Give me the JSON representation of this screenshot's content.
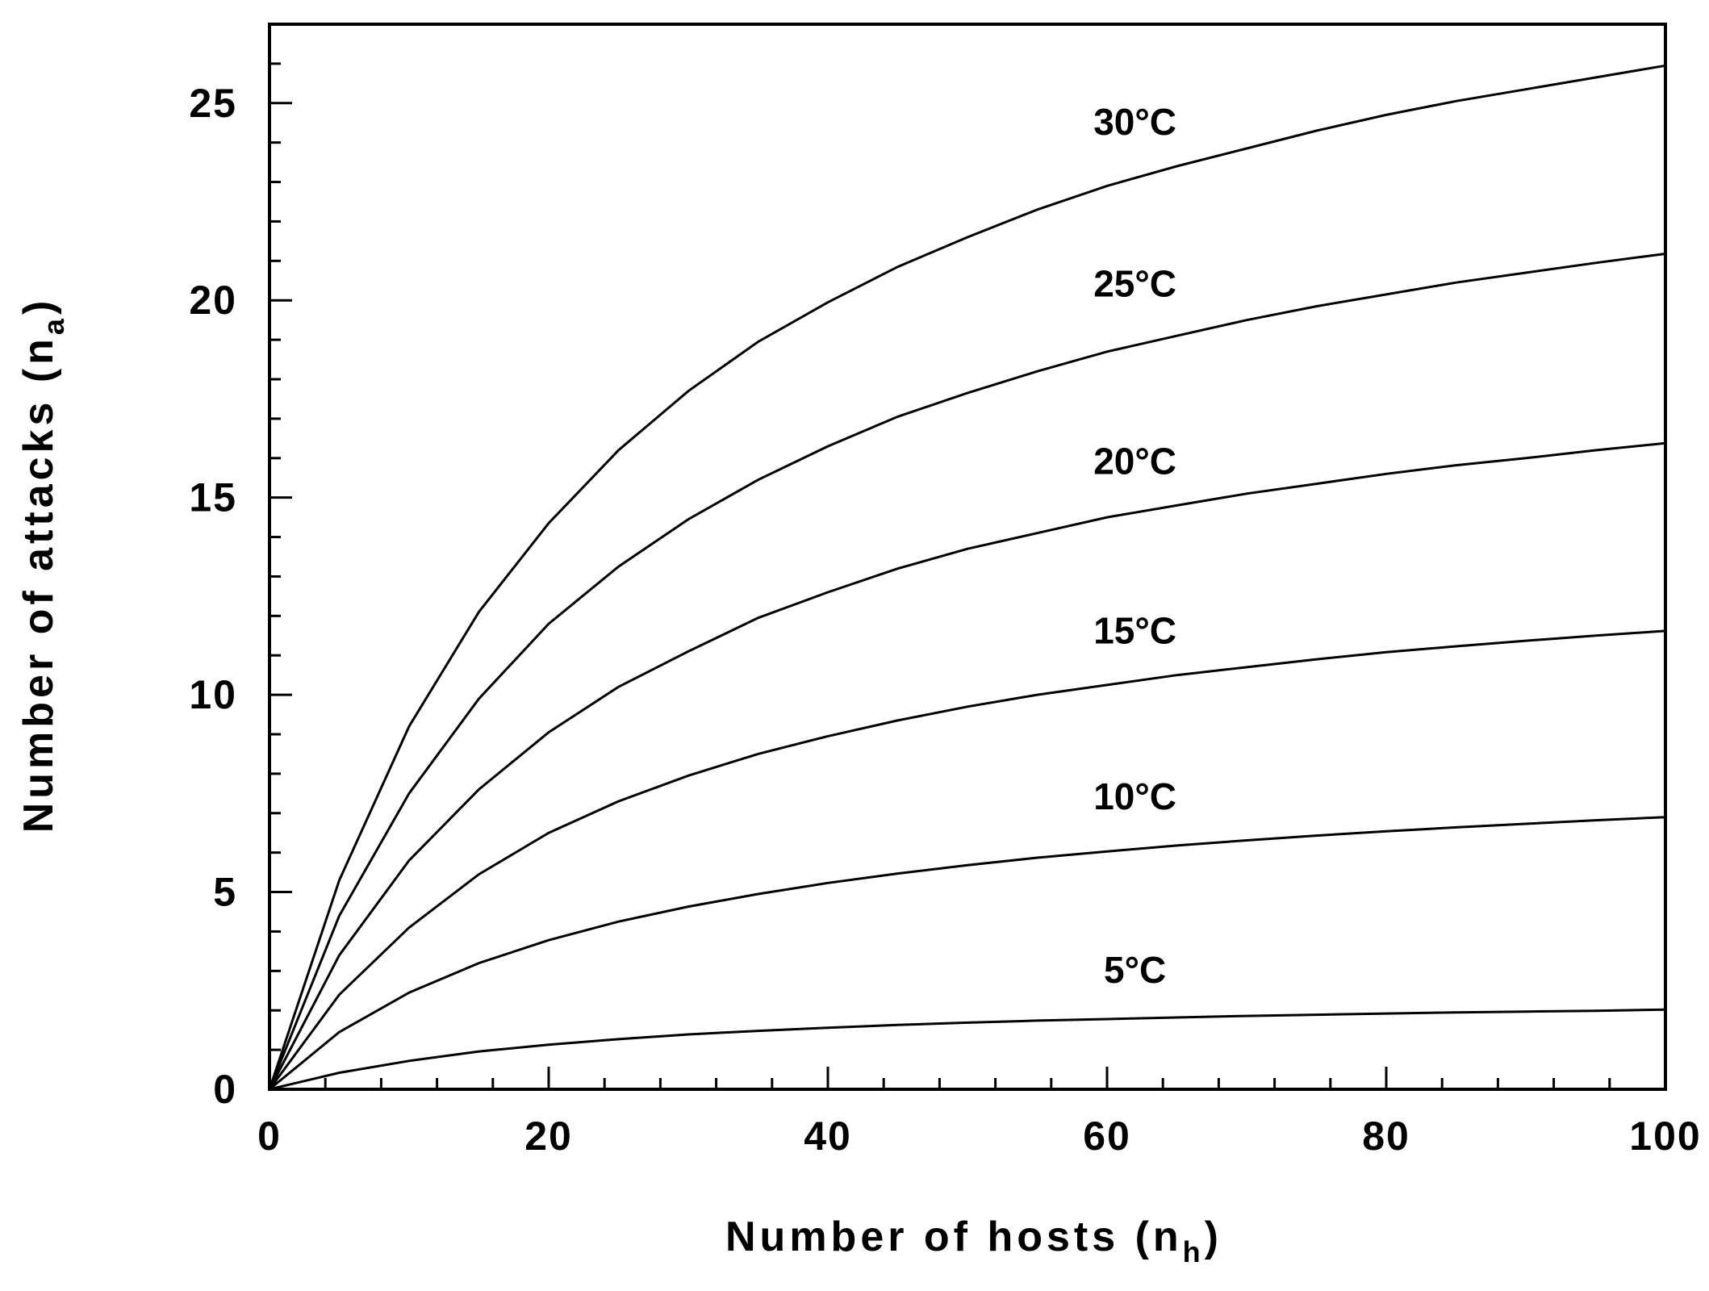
{
  "chart_data": {
    "type": "line",
    "xlabel": "Number of hosts (n",
    "xlabel_sub": "h",
    "xlabel_close": ")",
    "ylabel": "Number of attacks (n",
    "ylabel_sub": "a",
    "ylabel_close": ")",
    "xlim": [
      0,
      100
    ],
    "ylim": [
      0,
      27
    ],
    "x_ticks": [
      0,
      20,
      40,
      60,
      80,
      100
    ],
    "y_ticks": [
      0,
      5,
      10,
      15,
      20,
      25
    ],
    "grid": false,
    "legend": "none",
    "x": [
      0,
      5,
      10,
      15,
      20,
      25,
      30,
      35,
      40,
      45,
      50,
      55,
      60,
      65,
      70,
      75,
      80,
      85,
      90,
      95,
      100
    ],
    "series": [
      {
        "name": "5°C",
        "label_x": 62,
        "label_y": 2.7,
        "values": [
          0,
          0.42,
          0.72,
          0.96,
          1.13,
          1.27,
          1.39,
          1.48,
          1.56,
          1.63,
          1.69,
          1.74,
          1.78,
          1.82,
          1.86,
          1.89,
          1.92,
          1.95,
          1.97,
          1.99,
          2.02
        ]
      },
      {
        "name": "10°C",
        "label_x": 62,
        "label_y": 7.1,
        "values": [
          0,
          1.45,
          2.45,
          3.2,
          3.78,
          4.25,
          4.63,
          4.95,
          5.23,
          5.47,
          5.68,
          5.87,
          6.03,
          6.18,
          6.31,
          6.43,
          6.54,
          6.64,
          6.73,
          6.82,
          6.9
        ]
      },
      {
        "name": "15°C",
        "label_x": 62,
        "label_y": 11.3,
        "values": [
          0,
          2.4,
          4.1,
          5.45,
          6.5,
          7.3,
          7.95,
          8.5,
          8.95,
          9.35,
          9.7,
          10.0,
          10.25,
          10.5,
          10.7,
          10.9,
          11.08,
          11.23,
          11.37,
          11.5,
          11.62
        ]
      },
      {
        "name": "20°C",
        "label_x": 62,
        "label_y": 15.6,
        "values": [
          0,
          3.4,
          5.8,
          7.6,
          9.05,
          10.2,
          11.1,
          11.95,
          12.6,
          13.2,
          13.7,
          14.1,
          14.5,
          14.8,
          15.1,
          15.35,
          15.6,
          15.82,
          16.0,
          16.2,
          16.38
        ]
      },
      {
        "name": "25°C",
        "label_x": 62,
        "label_y": 20.1,
        "values": [
          0,
          4.4,
          7.5,
          9.9,
          11.8,
          13.25,
          14.45,
          15.45,
          16.3,
          17.05,
          17.65,
          18.2,
          18.7,
          19.1,
          19.5,
          19.85,
          20.15,
          20.45,
          20.7,
          20.95,
          21.18
        ]
      },
      {
        "name": "30°C",
        "label_x": 62,
        "label_y": 24.2,
        "values": [
          0,
          5.3,
          9.2,
          12.1,
          14.35,
          16.2,
          17.7,
          18.95,
          19.95,
          20.85,
          21.6,
          22.3,
          22.9,
          23.4,
          23.85,
          24.3,
          24.7,
          25.05,
          25.35,
          25.65,
          25.95
        ]
      }
    ]
  }
}
